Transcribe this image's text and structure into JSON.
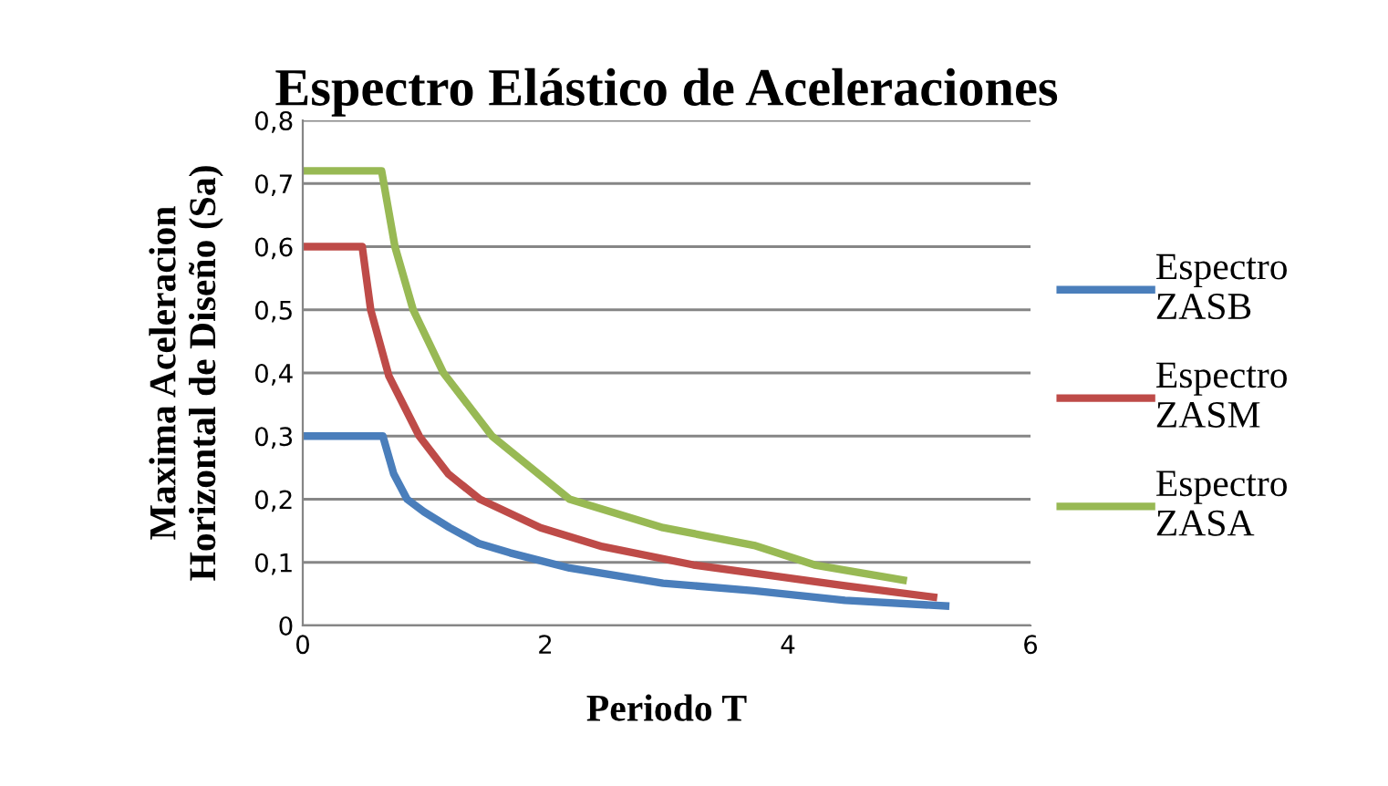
{
  "chart_data": {
    "type": "line",
    "title": "Espectro Elástico de Aceleraciones",
    "xlabel": "Periodo T",
    "ylabel": "Maxima Aceleracion\nHorizontal de Diseño (Sa)",
    "series": [
      {
        "name": "Espectro\nZASB",
        "color": "#4a7ebb",
        "x": [
          0,
          0.66,
          0.75,
          0.86,
          1.0,
          1.21,
          1.45,
          1.71,
          2.2,
          2.97,
          3.72,
          4.47,
          5.3
        ],
        "values": [
          0.3,
          0.3,
          0.24,
          0.2,
          0.18,
          0.155,
          0.13,
          0.115,
          0.091,
          0.067,
          0.055,
          0.04,
          0.031
        ]
      },
      {
        "name": "Espectro\nZASM",
        "color": "#be4b48",
        "x": [
          0,
          0.49,
          0.56,
          0.71,
          0.96,
          1.2,
          1.46,
          1.96,
          2.47,
          3.22,
          3.87,
          4.47,
          5.2
        ],
        "values": [
          0.6,
          0.6,
          0.5,
          0.395,
          0.3,
          0.24,
          0.2,
          0.155,
          0.125,
          0.096,
          0.079,
          0.063,
          0.045
        ]
      },
      {
        "name": "Espectro\nZASA",
        "color": "#98b954",
        "x": [
          0,
          0.65,
          0.76,
          0.91,
          1.16,
          1.56,
          2.2,
          2.97,
          3.72,
          4.22,
          4.95
        ],
        "values": [
          0.72,
          0.72,
          0.6,
          0.5,
          0.4,
          0.3,
          0.2,
          0.155,
          0.127,
          0.096,
          0.072
        ]
      }
    ],
    "xlim": [
      0,
      6
    ],
    "xticks": [
      0,
      2,
      4,
      6
    ],
    "ylim": [
      0,
      0.8
    ],
    "yticks": [
      0,
      {
        "value": 0.1,
        "label": "0,1"
      },
      {
        "value": 0.2,
        "label": "0,2"
      },
      {
        "value": 0.3,
        "label": "0,3"
      },
      {
        "value": 0.4,
        "label": "0,4"
      },
      {
        "value": 0.5,
        "label": "0,5"
      },
      {
        "value": 0.6,
        "label": "0,6"
      },
      {
        "value": 0.7,
        "label": "0,7"
      },
      {
        "value": 0.8,
        "label": "0,8"
      }
    ],
    "grid": "y",
    "legend": "right",
    "marker": "none",
    "line_style": "solid"
  }
}
